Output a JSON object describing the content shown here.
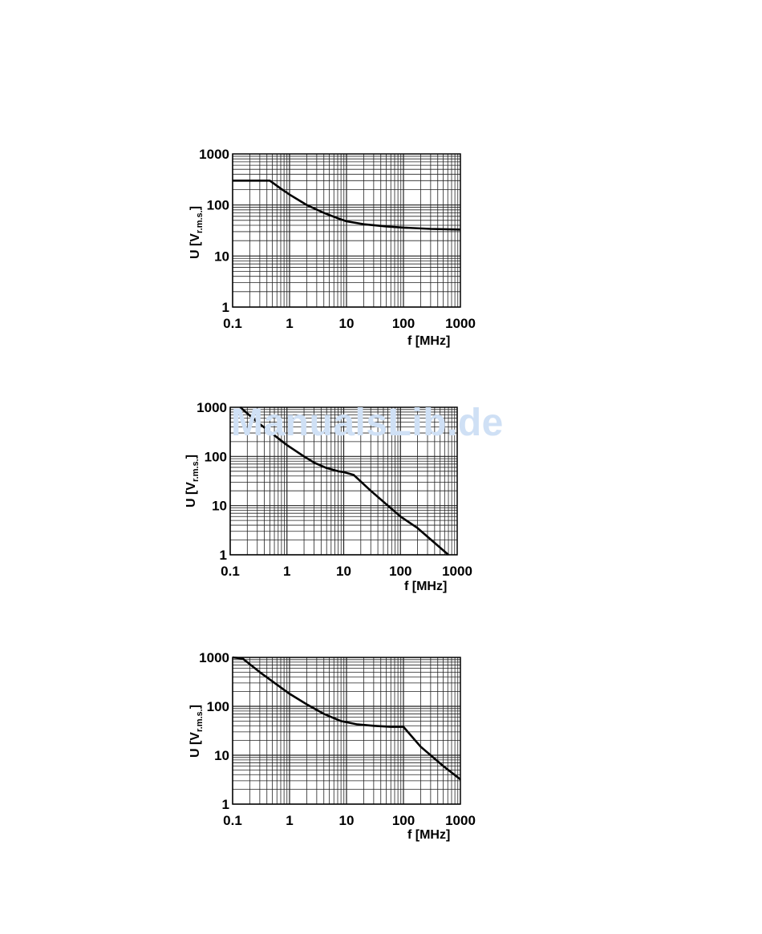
{
  "watermark": "ManualsLib.de",
  "chart_data": [
    {
      "type": "line",
      "xscale": "log",
      "yscale": "log",
      "xlim": [
        0.1,
        1000
      ],
      "ylim": [
        1,
        1000
      ],
      "xticks": [
        "0.1",
        "1",
        "10",
        "100",
        "1000"
      ],
      "yticks": [
        "1",
        "10",
        "100",
        "1000"
      ],
      "xlabel": "f [MHz]",
      "ylabel": "U [V",
      "ylabel_sub": "r.m.s.",
      "ylabel_end": "]",
      "grid": true,
      "series": [
        {
          "x": [
            0.1,
            0.45,
            0.7,
            1,
            2,
            4,
            7,
            10,
            20,
            50,
            100,
            300,
            1000
          ],
          "y": [
            300,
            300,
            210,
            160,
            100,
            70,
            55,
            48,
            42,
            38,
            36,
            34,
            33
          ]
        }
      ]
    },
    {
      "type": "line",
      "xscale": "log",
      "yscale": "log",
      "xlim": [
        0.1,
        1000
      ],
      "ylim": [
        1,
        1000
      ],
      "xticks": [
        "0.1",
        "1",
        "10",
        "100",
        "1000"
      ],
      "yticks": [
        "1",
        "10",
        "100",
        "1000"
      ],
      "xlabel": "f [MHz]",
      "ylabel": "U [V",
      "ylabel_sub": "r.m.s.",
      "ylabel_end": "]",
      "grid": true,
      "series": [
        {
          "x": [
            0.15,
            0.3,
            1,
            2,
            3,
            5,
            8,
            10,
            15,
            30,
            100,
            200,
            700
          ],
          "y": [
            1000,
            500,
            170,
            100,
            75,
            58,
            50,
            48,
            42,
            20,
            6,
            3.5,
            1
          ]
        }
      ]
    },
    {
      "type": "line",
      "xscale": "log",
      "yscale": "log",
      "xlim": [
        0.1,
        1000
      ],
      "ylim": [
        1,
        1000
      ],
      "xticks": [
        "0.1",
        "1",
        "10",
        "100",
        "1000"
      ],
      "yticks": [
        "1",
        "10",
        "100",
        "1000"
      ],
      "xlabel": "f [MHz]",
      "ylabel": "U [V",
      "ylabel_sub": "r.m.s.",
      "ylabel_end": "]",
      "grid": true,
      "series": [
        {
          "x": [
            0.1,
            0.15,
            0.3,
            1,
            2,
            4,
            8,
            15,
            30,
            60,
            100,
            200,
            500,
            1000
          ],
          "y": [
            1000,
            950,
            500,
            180,
            110,
            70,
            50,
            43,
            40,
            38,
            38,
            15,
            6,
            3.2
          ]
        }
      ]
    }
  ]
}
